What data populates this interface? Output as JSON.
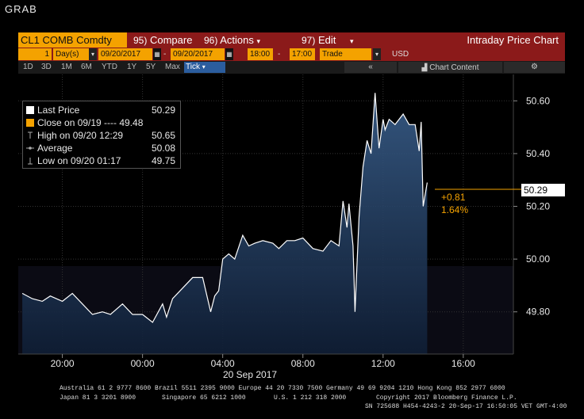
{
  "window": {
    "label": "GRAB"
  },
  "toolbar": {
    "ticker": "CL1 COMB Comdty",
    "compare_num": "95)",
    "compare_label": "Compare",
    "actions_num": "96)",
    "actions_label": "Actions",
    "edit_num": "97)",
    "edit_label": "Edit",
    "title": "Intraday Price Chart"
  },
  "params": {
    "period_count": "1",
    "period_unit": "Day(s)",
    "start_date": "09/20/2017",
    "end_date": "09/20/2017",
    "start_time": "18:00",
    "end_time": "17:00",
    "market": "Trade",
    "currency": "USD"
  },
  "periods": [
    "1D",
    "3D",
    "1M",
    "6M",
    "YTD",
    "1Y",
    "5Y",
    "Max"
  ],
  "selected_period": "Tick",
  "tools": {
    "collapse": "«",
    "chart_content": "Chart Content",
    "settings": "⚙"
  },
  "legend": [
    {
      "label": "Last Price",
      "value": "50.29",
      "color": "#ffffff"
    },
    {
      "label": "Close on 09/19 ---- 49.48",
      "value": "",
      "color": "#f4a200"
    },
    {
      "label": "High on 09/20 12:29",
      "value": "50.65",
      "color": "#aaaaaa"
    },
    {
      "label": "Average",
      "value": "50.08",
      "color": "#aaaaaa"
    },
    {
      "label": "Low on 09/20 01:17",
      "value": "49.75",
      "color": "#aaaaaa"
    }
  ],
  "last_price_tag": "50.29",
  "change_abs": "+0.81",
  "change_pct": "1.64%",
  "chart_data": {
    "type": "area",
    "x_tick_labels": [
      "20:00",
      "00:00",
      "04:00",
      "08:00",
      "12:00",
      "16:00"
    ],
    "x_date_label": "20 Sep 2017",
    "y_tick_labels": [
      "50.60",
      "50.40",
      "50.20",
      "50.00",
      "49.80"
    ],
    "ylim": [
      49.64,
      50.7
    ],
    "xlim_hours": [
      -6.2,
      18.5
    ],
    "series": [
      {
        "x_hours": [
          -6.0,
          -5.5,
          -5.0,
          -4.6,
          -4.0,
          -3.5,
          -3.0,
          -2.5,
          -2.0,
          -1.6,
          -1.0,
          -0.5,
          0.0,
          0.5,
          1.0,
          1.2,
          1.5,
          2.0,
          2.5,
          3.0,
          3.4,
          3.6,
          3.8,
          4.0,
          4.3,
          4.6,
          5.0,
          5.3,
          5.6,
          6.0,
          6.5,
          6.8,
          7.2,
          7.6,
          8.0,
          8.5,
          9.0,
          9.4,
          9.8,
          10.0,
          10.2,
          10.3,
          10.5,
          10.6,
          10.8,
          11.0,
          11.2,
          11.4,
          11.6,
          11.8,
          12.0,
          12.1,
          12.3,
          12.6,
          13.0,
          13.3,
          13.6,
          13.8,
          13.9,
          14.0,
          14.2
        ],
        "values": [
          49.87,
          49.85,
          49.84,
          49.86,
          49.84,
          49.87,
          49.83,
          49.79,
          49.8,
          49.79,
          49.83,
          49.79,
          49.79,
          49.76,
          49.83,
          49.78,
          49.85,
          49.89,
          49.93,
          49.93,
          49.8,
          49.86,
          49.88,
          50.0,
          50.02,
          50.0,
          50.09,
          50.05,
          50.06,
          50.07,
          50.06,
          50.04,
          50.07,
          50.07,
          50.08,
          50.04,
          50.03,
          50.07,
          50.05,
          50.22,
          50.12,
          50.21,
          50.05,
          49.8,
          50.16,
          50.35,
          50.45,
          50.4,
          50.63,
          50.42,
          50.53,
          50.49,
          50.53,
          50.51,
          50.55,
          50.51,
          50.51,
          50.41,
          50.52,
          50.2,
          50.29
        ]
      }
    ],
    "reference_lines": [
      {
        "label": "Close on 09/19",
        "value": 49.48
      }
    ],
    "grid": true,
    "legend_position": "top-left"
  },
  "footer": {
    "line1": "Australia 61 2 9777 8600 Brazil 5511 2395 9000 Europe 44 20 7330 7500 Germany 49 69 9204 1210 Hong Kong 852 2977 6000",
    "line2a": "Japan 81 3 3201 8900",
    "line2b": "Singapore 65 6212 1000",
    "line2c": "U.S. 1 212 318 2000",
    "copyright": "Copyright 2017 Bloomberg Finance L.P.",
    "sn": "SN 725688 H454-4243-2 20-Sep-17 16:50:05 VET  GMT-4:00"
  }
}
